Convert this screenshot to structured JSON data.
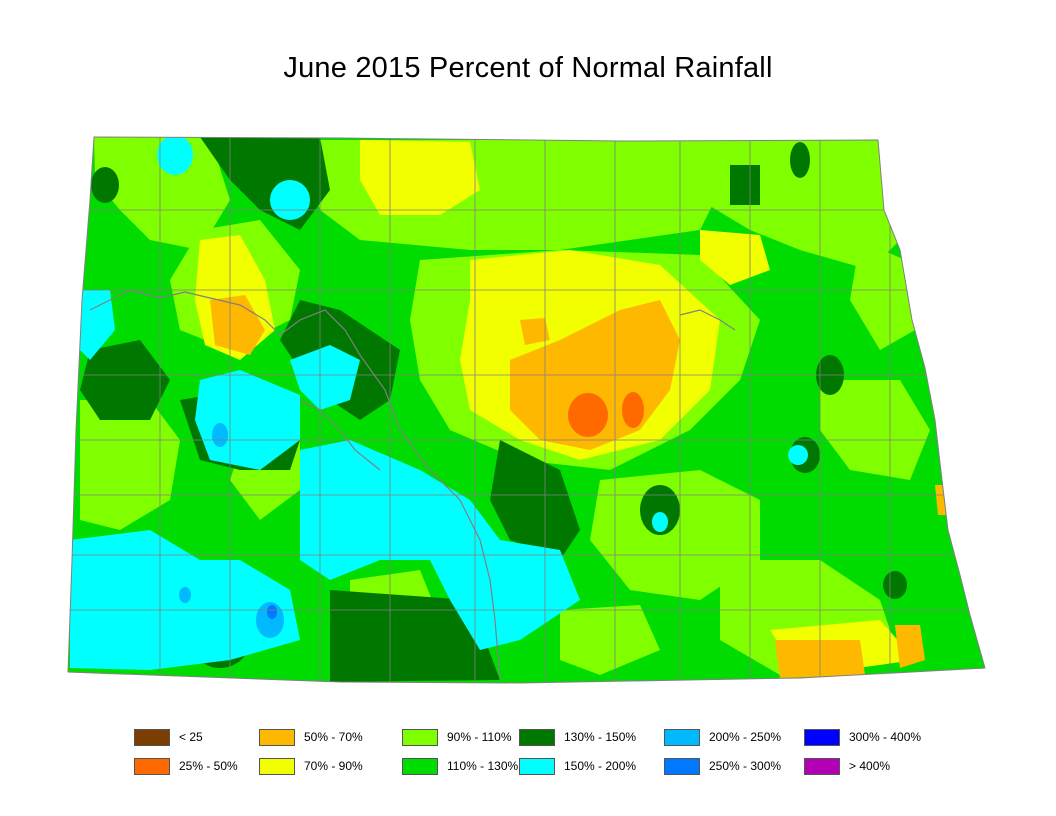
{
  "title": "June 2015 Percent of Normal Rainfall",
  "legend": [
    {
      "label": "< 25",
      "color": "#7a3f00"
    },
    {
      "label": "25% - 50%",
      "color": "#ff6a00"
    },
    {
      "label": "50% - 70%",
      "color": "#ffb800"
    },
    {
      "label": "70% - 90%",
      "color": "#f2ff00"
    },
    {
      "label": "90% - 110%",
      "color": "#80ff00"
    },
    {
      "label": "110% - 130%",
      "color": "#00dc00"
    },
    {
      "label": "130% - 150%",
      "color": "#007800"
    },
    {
      "label": "150% - 200%",
      "color": "#00ffff"
    },
    {
      "label": "200% - 250%",
      "color": "#00b9ff"
    },
    {
      "label": "250% - 300%",
      "color": "#0078ff"
    },
    {
      "label": "300% - 400%",
      "color": "#0000ff"
    },
    {
      "label": "> 400%",
      "color": "#b400b4"
    }
  ],
  "map": {
    "region": "North Dakota",
    "base_color": "#00dc00",
    "boundary_color": "#808080"
  }
}
